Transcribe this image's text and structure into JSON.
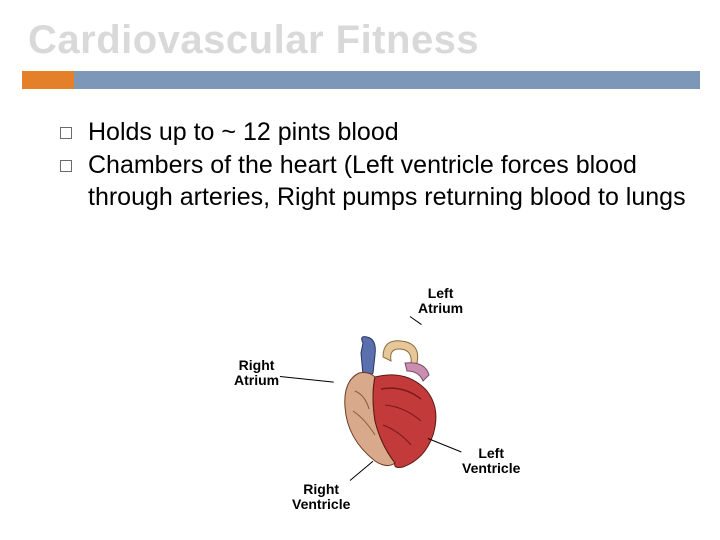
{
  "title": "Cardiovascular Fitness",
  "title_color": "#d9d9d9",
  "rule": {
    "accent_color": "#e47f2a",
    "bar_color": "#7d97b9"
  },
  "bullets": [
    "Holds up to ~ 12 pints blood",
    "Chambers of the heart (Left ventricle forces blood through arteries, Right pumps returning blood to lungs"
  ],
  "diagram": {
    "type": "anatomical-illustration",
    "subject": "human heart chambers",
    "labels": {
      "left_atrium": "Left\nAtrium",
      "right_atrium": "Right\nAtrium",
      "left_ventricle": "Left\nVentricle",
      "right_ventricle": "Right\nVentricle"
    },
    "colors": {
      "oxygenated": "#c23a3a",
      "deoxygenated": "#5a6fae",
      "right_surface": "#d9a98b",
      "aorta": "#e6c79a",
      "outline": "#4a2a1a"
    }
  }
}
